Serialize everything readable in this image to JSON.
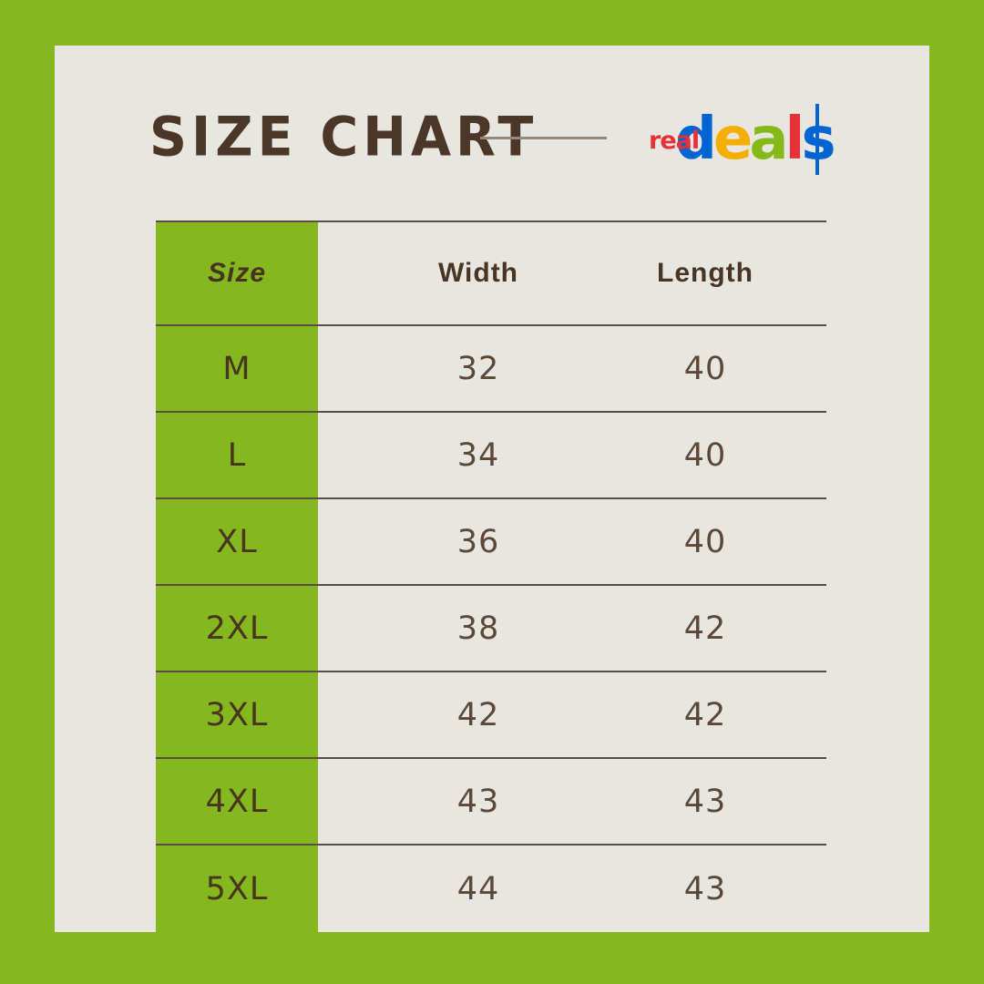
{
  "header": {
    "title": "SIZE CHART",
    "logo": {
      "prefix": "real",
      "word_letters": [
        {
          "char": "d",
          "color": "#0064D2"
        },
        {
          "char": "e",
          "color": "#F5AF02"
        },
        {
          "char": "a",
          "color": "#86B817"
        },
        {
          "char": "l",
          "color": "#E53238"
        },
        {
          "char": "s",
          "color": "#0064D2",
          "dollar": true
        }
      ]
    }
  },
  "chart_data": {
    "type": "table",
    "title": "SIZE CHART",
    "columns": [
      "Size",
      "Width",
      "Length"
    ],
    "rows": [
      [
        "M",
        "32",
        "40"
      ],
      [
        "L",
        "34",
        "40"
      ],
      [
        "XL",
        "36",
        "40"
      ],
      [
        "2XL",
        "38",
        "42"
      ],
      [
        "3XL",
        "42",
        "42"
      ],
      [
        "4XL",
        "43",
        "43"
      ],
      [
        "5XL",
        "44",
        "43"
      ]
    ]
  },
  "colors": {
    "frame_green": "#85B71E",
    "column_green": "#85B71E",
    "panel_cream": "#E8E6E0",
    "title_brown": "#4B3627",
    "header_text_brown": "#483524",
    "value_text_brown": "#5B4839",
    "line_brown": "#5A4D42",
    "divider_taupe": "#97897C",
    "logo_red": "#E53238",
    "logo_blue": "#0064D2",
    "logo_yellow": "#F5AF02",
    "logo_green": "#86B817"
  }
}
